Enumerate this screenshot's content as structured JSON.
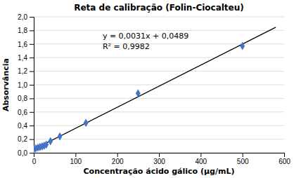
{
  "chart_data": {
    "type": "scatter",
    "title": "Reta de calibração (Folin-Ciocalteu)",
    "x_label": "Concentração ácido gálico (µg/mL)",
    "y_label": "Absorvância",
    "annotations": [
      "y = 0,0031x + 0,0489",
      "R² = 0,9982"
    ],
    "series": [
      {
        "type": "scatter",
        "color": "#4472C4",
        "marker": "diamond",
        "x": [
          0,
          5,
          10,
          15,
          20,
          25,
          30,
          40,
          62.5,
          125,
          250,
          500
        ],
        "values": [
          0.049,
          0.065,
          0.075,
          0.085,
          0.095,
          0.105,
          0.12,
          0.17,
          0.24,
          0.44,
          0.875,
          1.57
        ]
      },
      {
        "type": "line",
        "color": "#000000",
        "line_style": "solid",
        "x": [
          0,
          580
        ],
        "values": [
          0.0489,
          1.8469
        ]
      }
    ],
    "xlim": [
      0,
      600
    ],
    "xticks": [
      0,
      100,
      200,
      300,
      400,
      500,
      600
    ],
    "ylim": [
      0.0,
      2.0
    ],
    "yticks": [
      {
        "value": 0.0,
        "label": "0,0"
      },
      {
        "value": 0.2,
        "label": "0,2"
      },
      {
        "value": 0.4,
        "label": "0,4"
      },
      {
        "value": 0.6,
        "label": "0,6"
      },
      {
        "value": 0.8,
        "label": "0,8"
      },
      {
        "value": 1.0,
        "label": "1,0"
      },
      {
        "value": 1.2,
        "label": "1,2"
      },
      {
        "value": 1.4,
        "label": "1,4"
      },
      {
        "value": 1.6,
        "label": "1,6"
      },
      {
        "value": 1.8,
        "label": "1,8"
      },
      {
        "value": 2.0,
        "label": "2,0"
      }
    ],
    "grid": "y"
  }
}
